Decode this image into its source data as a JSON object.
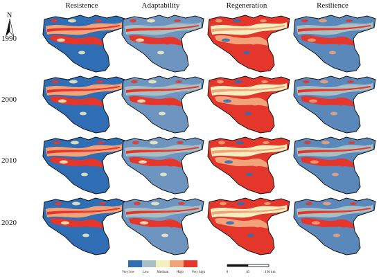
{
  "columns": [
    "Resistence",
    "Adaptability",
    "Regeneration",
    "Resilience"
  ],
  "rows": [
    "1990",
    "2000",
    "2010",
    "2020"
  ],
  "north_label": "N",
  "legend": {
    "classes": [
      {
        "label": "Very low",
        "color": "#2f6db5"
      },
      {
        "label": "Low",
        "color": "#a8bfc4"
      },
      {
        "label": "Medium",
        "color": "#f4efbf"
      },
      {
        "label": "High",
        "color": "#f2a37a"
      },
      {
        "label": "Very high",
        "color": "#e5362b"
      }
    ]
  },
  "scale_bar": {
    "ticks": [
      "0",
      "65",
      "130 km"
    ]
  },
  "palettes": {
    "Resistence": {
      "base": "#2f6db5",
      "band": "#e5362b",
      "mix": "#f2a37a",
      "lite": "#f4efbf"
    },
    "Adaptability": {
      "base": "#6d95bf",
      "band": "#e5362b",
      "mix": "#a8bfc4",
      "lite": "#f4efbf"
    },
    "Regeneration": {
      "base": "#e5362b",
      "band": "#f2a37a",
      "mix": "#f4efbf",
      "lite": "#2f6db5"
    },
    "Resilience": {
      "base": "#5a88bb",
      "band": "#e5362b",
      "mix": "#a8bfc4",
      "lite": "#f2a37a"
    }
  }
}
